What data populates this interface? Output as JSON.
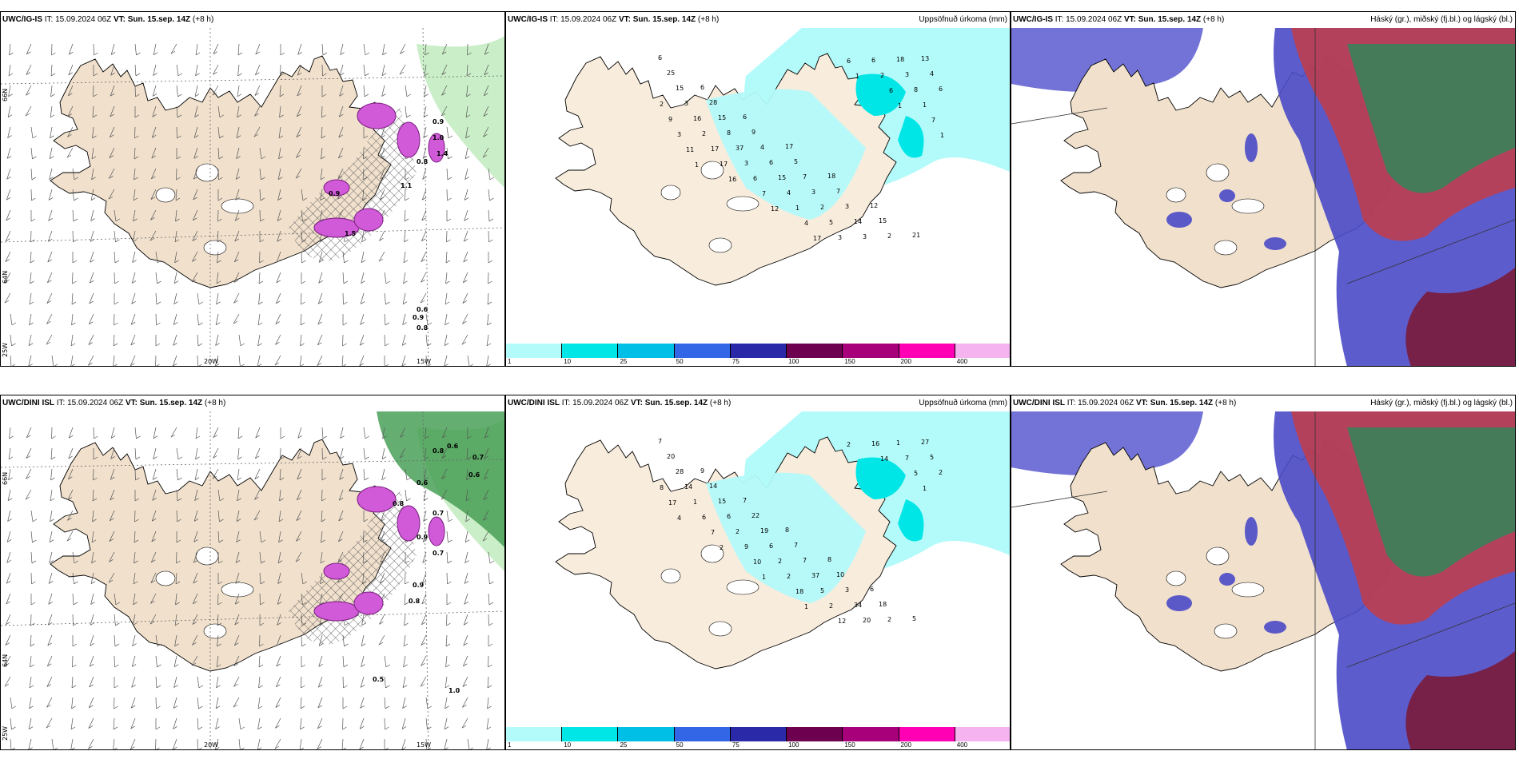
{
  "rows": [
    {
      "model": "UWC/IG-IS",
      "it_label": "IT:",
      "it": "15.09.2024 06Z",
      "vt_label": "VT:",
      "vt": "Sun. 15.sep. 14Z",
      "lead": "(+8 h)"
    },
    {
      "model": "UWC/DINI ISL",
      "it_label": "IT:",
      "it": "15.09.2024 06Z",
      "vt_label": "VT:",
      "vt": "Sun. 15.sep. 14Z",
      "lead": "(+8 h)"
    }
  ],
  "precip_title": "Uppsöfnuð úrkoma (mm)",
  "cloud_title": "Háský (gr.), miðský (fj.bl.) og lágský (bl.)",
  "axis_labels": {
    "lat66": "66N",
    "lat64": "64N",
    "lon20": "20W",
    "lon15": "15W",
    "lon25": "25W"
  },
  "legend": {
    "colors": [
      "#b3fafa",
      "#00e6e6",
      "#00bfe6",
      "#3366e6",
      "#2a2aa8",
      "#6e0050",
      "#a8007a",
      "#ff00b4",
      "#f5b3f0"
    ],
    "ticks": [
      "1",
      "10",
      "25",
      "50",
      "75",
      "100",
      "150",
      "200",
      "400"
    ]
  },
  "precip_values_top": [
    "6",
    "6",
    "6",
    "17",
    "18",
    "12",
    "21",
    "25",
    "28",
    "9",
    "5",
    "7",
    "15",
    "13",
    "15",
    "15",
    "4",
    "7",
    "3",
    "2",
    "4",
    "3",
    "8",
    "6",
    "3",
    "14",
    "18",
    "6",
    "16",
    "37",
    "15",
    "2",
    "3",
    "3",
    "2",
    "2",
    "3",
    "4",
    "5",
    "6",
    "8",
    "9",
    "17",
    "6",
    "1",
    "3",
    "2",
    "1",
    "3",
    "17",
    "7",
    "4",
    "6",
    "6",
    "7",
    "11",
    "16",
    "12",
    "17",
    "1",
    "1",
    "1",
    "1"
  ],
  "precip_values_bottom": [
    "7",
    "9",
    "7",
    "8",
    "8",
    "6",
    "5",
    "20",
    "14",
    "22",
    "7",
    "10",
    "18",
    "27",
    "28",
    "15",
    "19",
    "7",
    "3",
    "2",
    "5",
    "14",
    "6",
    "6",
    "37",
    "34",
    "1",
    "2",
    "1",
    "2",
    "2",
    "5",
    "20",
    "7",
    "8",
    "6",
    "9",
    "2",
    "2",
    "16",
    "5",
    "17",
    "7",
    "10",
    "18",
    "12",
    "14",
    "1",
    "4",
    "2",
    "1",
    "1",
    "2"
  ],
  "snow_values_top": [
    "1.0",
    "0.8",
    "1.4",
    "0.9",
    "1.5",
    "0.6",
    "0.9",
    "0.8",
    "0.9",
    "1.1"
  ],
  "snow_values_bottom": [
    "0.6",
    "0.7",
    "0.8",
    "0.6",
    "0.6",
    "0.8",
    "0.7",
    "0.9",
    "0.7",
    "0.9",
    "0.8",
    "0.5",
    "1.0"
  ]
}
